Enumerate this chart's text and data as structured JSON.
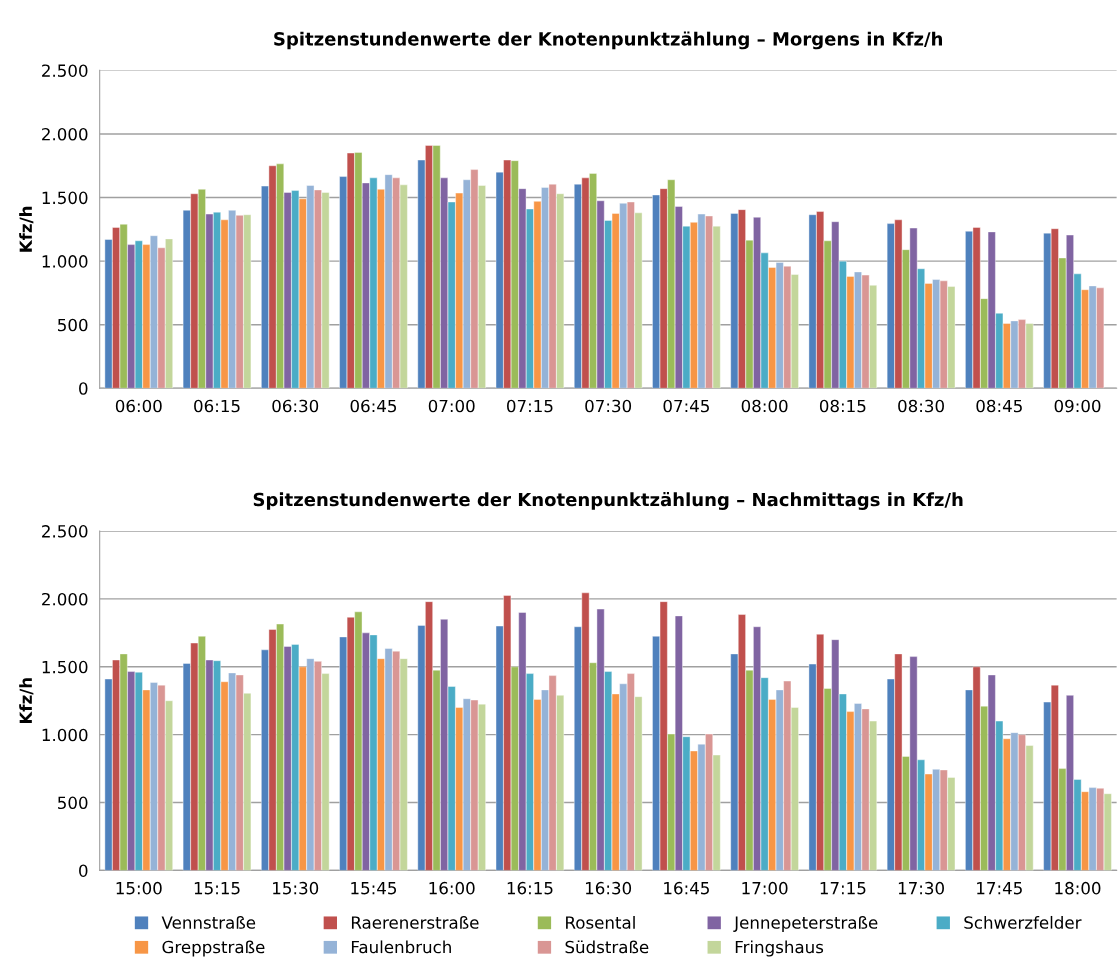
{
  "chart_data": [
    {
      "type": "bar",
      "title": "Spitzenstundenwerte der Knotenpunktzählung – Morgens in Kfz/h",
      "ylabel": "Kfz/h",
      "categories": [
        "06:00",
        "06:15",
        "06:30",
        "06:45",
        "07:00",
        "07:15",
        "07:30",
        "07:45",
        "08:00",
        "08:15",
        "08:30",
        "08:45",
        "09:00"
      ],
      "ylim": [
        0,
        2500
      ],
      "yticks": [
        {
          "value": 0,
          "label": "0"
        },
        {
          "value": 500,
          "label": "500"
        },
        {
          "value": 1000,
          "label": "1.000"
        },
        {
          "value": 1500,
          "label": "1.500"
        },
        {
          "value": 2000,
          "label": "2.000"
        },
        {
          "value": 2500,
          "label": "2.500"
        }
      ],
      "grid": "y",
      "series": [
        {
          "color": "#4f81bd",
          "values": [
            1170,
            1400,
            1590,
            1665,
            1795,
            1700,
            1605,
            1520,
            1375,
            1365,
            1295,
            1235,
            1220
          ]
        },
        {
          "color": "#c0504d",
          "values": [
            1265,
            1530,
            1750,
            1850,
            1910,
            1795,
            1655,
            1570,
            1405,
            1390,
            1325,
            1265,
            1255
          ]
        },
        {
          "color": "#9bbb59",
          "values": [
            1290,
            1565,
            1765,
            1855,
            1910,
            1790,
            1690,
            1640,
            1165,
            1160,
            1090,
            705,
            1025
          ]
        },
        {
          "color": "#8064a2",
          "values": [
            1130,
            1370,
            1540,
            1615,
            1655,
            1570,
            1475,
            1430,
            1345,
            1310,
            1260,
            1230,
            1205
          ]
        },
        {
          "color": "#4bacc6",
          "values": [
            1160,
            1385,
            1555,
            1655,
            1465,
            1410,
            1320,
            1275,
            1065,
            1000,
            940,
            590,
            900
          ]
        },
        {
          "color": "#f79646",
          "values": [
            1130,
            1325,
            1490,
            1565,
            1535,
            1470,
            1375,
            1305,
            950,
            880,
            825,
            510,
            775
          ]
        },
        {
          "color": "#95b3d7",
          "values": [
            1200,
            1400,
            1595,
            1680,
            1640,
            1580,
            1455,
            1370,
            990,
            915,
            855,
            530,
            805
          ]
        },
        {
          "color": "#d99694",
          "values": [
            1105,
            1360,
            1560,
            1655,
            1720,
            1605,
            1465,
            1355,
            960,
            890,
            845,
            540,
            790
          ]
        },
        {
          "color": "#c3d69b",
          "values": [
            1175,
            1365,
            1540,
            1600,
            1595,
            1530,
            1380,
            1275,
            895,
            810,
            800,
            510,
            null
          ]
        }
      ]
    },
    {
      "type": "bar",
      "title": "Spitzenstundenwerte der Knotenpunktzählung – Nachmittags in Kfz/h",
      "ylabel": "Kfz/h",
      "categories": [
        "15:00",
        "15:15",
        "15:30",
        "15:45",
        "16:00",
        "16:15",
        "16:30",
        "16:45",
        "17:00",
        "17:15",
        "17:30",
        "17:45",
        "18:00"
      ],
      "ylim": [
        0,
        2500
      ],
      "yticks": [
        {
          "value": 0,
          "label": "0"
        },
        {
          "value": 500,
          "label": "500"
        },
        {
          "value": 1000,
          "label": "1.000"
        },
        {
          "value": 1500,
          "label": "1.500"
        },
        {
          "value": 2000,
          "label": "2.000"
        },
        {
          "value": 2500,
          "label": "2.500"
        }
      ],
      "grid": "y",
      "legend": "bottom",
      "series": [
        {
          "name": "Vennstraße",
          "color": "#4f81bd",
          "values": [
            1410,
            1525,
            1625,
            1720,
            1805,
            1800,
            1795,
            1725,
            1595,
            1520,
            1410,
            1330,
            1240
          ]
        },
        {
          "name": "Raerenerstraße",
          "color": "#c0504d",
          "values": [
            1550,
            1675,
            1775,
            1865,
            1980,
            2025,
            2045,
            1980,
            1885,
            1740,
            1595,
            1500,
            1365
          ]
        },
        {
          "name": "Rosental",
          "color": "#9bbb59",
          "values": [
            1595,
            1725,
            1815,
            1905,
            1475,
            1500,
            1530,
            1005,
            1475,
            1340,
            840,
            1210,
            750
          ]
        },
        {
          "name": "Jennepeterstraße",
          "color": "#8064a2",
          "values": [
            1465,
            1550,
            1650,
            1750,
            1850,
            1900,
            1925,
            1875,
            1795,
            1700,
            1575,
            1440,
            1290
          ]
        },
        {
          "name": "Schwerzfelder",
          "color": "#4bacc6",
          "values": [
            1460,
            1545,
            1665,
            1735,
            1355,
            1450,
            1465,
            985,
            1420,
            1300,
            815,
            1100,
            670
          ]
        },
        {
          "name": "Greppstraße",
          "color": "#f79646",
          "values": [
            1330,
            1390,
            1500,
            1560,
            1200,
            1260,
            1300,
            880,
            1260,
            1170,
            710,
            970,
            580
          ]
        },
        {
          "name": "Faulenbruch",
          "color": "#95b3d7",
          "values": [
            1385,
            1455,
            1560,
            1635,
            1265,
            1330,
            1375,
            930,
            1330,
            1230,
            745,
            1015,
            610
          ]
        },
        {
          "name": "Südstraße",
          "color": "#d99694",
          "values": [
            1365,
            1440,
            1540,
            1615,
            1255,
            1435,
            1450,
            1005,
            1395,
            1190,
            740,
            1000,
            605
          ]
        },
        {
          "name": "Fringshaus",
          "color": "#c3d69b",
          "values": [
            1250,
            1305,
            1450,
            1560,
            1225,
            1290,
            1280,
            850,
            1200,
            1100,
            685,
            920,
            565
          ]
        }
      ]
    }
  ]
}
